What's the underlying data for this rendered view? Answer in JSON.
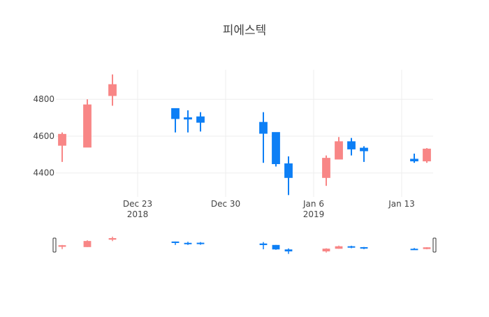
{
  "chart_data": {
    "type": "candlestick",
    "title": "피에스텍",
    "xlabel": "",
    "ylabel": "",
    "xlim": [
      "2018-12-17",
      "2019-01-15"
    ],
    "ylim": [
      4270,
      4960
    ],
    "grid": true,
    "range_slider": true,
    "colors": {
      "increasing": "#f88686",
      "decreasing": "#0d7ff5"
    },
    "x_ticks": [
      {
        "date": "2018-12-23",
        "label": "Dec 23",
        "sublabel": "2018"
      },
      {
        "date": "2018-12-30",
        "label": "Dec 30",
        "sublabel": ""
      },
      {
        "date": "2019-01-06",
        "label": "Jan 6",
        "sublabel": "2019"
      },
      {
        "date": "2019-01-13",
        "label": "Jan 13",
        "sublabel": ""
      }
    ],
    "y_ticks": [
      {
        "value": 4400,
        "label": "4400"
      },
      {
        "value": 4600,
        "label": "4600"
      },
      {
        "value": 4800,
        "label": "4800"
      }
    ],
    "candles": [
      {
        "date": "2018-12-17",
        "open": 4550,
        "high": 4620,
        "low": 4460,
        "close": 4610
      },
      {
        "date": "2018-12-19",
        "open": 4540,
        "high": 4800,
        "low": 4540,
        "close": 4770
      },
      {
        "date": "2018-12-21",
        "open": 4820,
        "high": 4935,
        "low": 4765,
        "close": 4880
      },
      {
        "date": "2018-12-26",
        "open": 4750,
        "high": 4750,
        "low": 4620,
        "close": 4695
      },
      {
        "date": "2018-12-27",
        "open": 4700,
        "high": 4740,
        "low": 4620,
        "close": 4695
      },
      {
        "date": "2018-12-28",
        "open": 4705,
        "high": 4730,
        "low": 4625,
        "close": 4675
      },
      {
        "date": "2019-01-02",
        "open": 4675,
        "high": 4730,
        "low": 4455,
        "close": 4615
      },
      {
        "date": "2019-01-03",
        "open": 4620,
        "high": 4620,
        "low": 4435,
        "close": 4450
      },
      {
        "date": "2019-01-04",
        "open": 4450,
        "high": 4490,
        "low": 4280,
        "close": 4375
      },
      {
        "date": "2019-01-07",
        "open": 4375,
        "high": 4495,
        "low": 4330,
        "close": 4480
      },
      {
        "date": "2019-01-08",
        "open": 4475,
        "high": 4595,
        "low": 4475,
        "close": 4570
      },
      {
        "date": "2019-01-09",
        "open": 4570,
        "high": 4590,
        "low": 4495,
        "close": 4530
      },
      {
        "date": "2019-01-10",
        "open": 4535,
        "high": 4545,
        "low": 4460,
        "close": 4520
      },
      {
        "date": "2019-01-14",
        "open": 4475,
        "high": 4505,
        "low": 4455,
        "close": 4465
      },
      {
        "date": "2019-01-15",
        "open": 4465,
        "high": 4535,
        "low": 4455,
        "close": 4530
      }
    ]
  }
}
